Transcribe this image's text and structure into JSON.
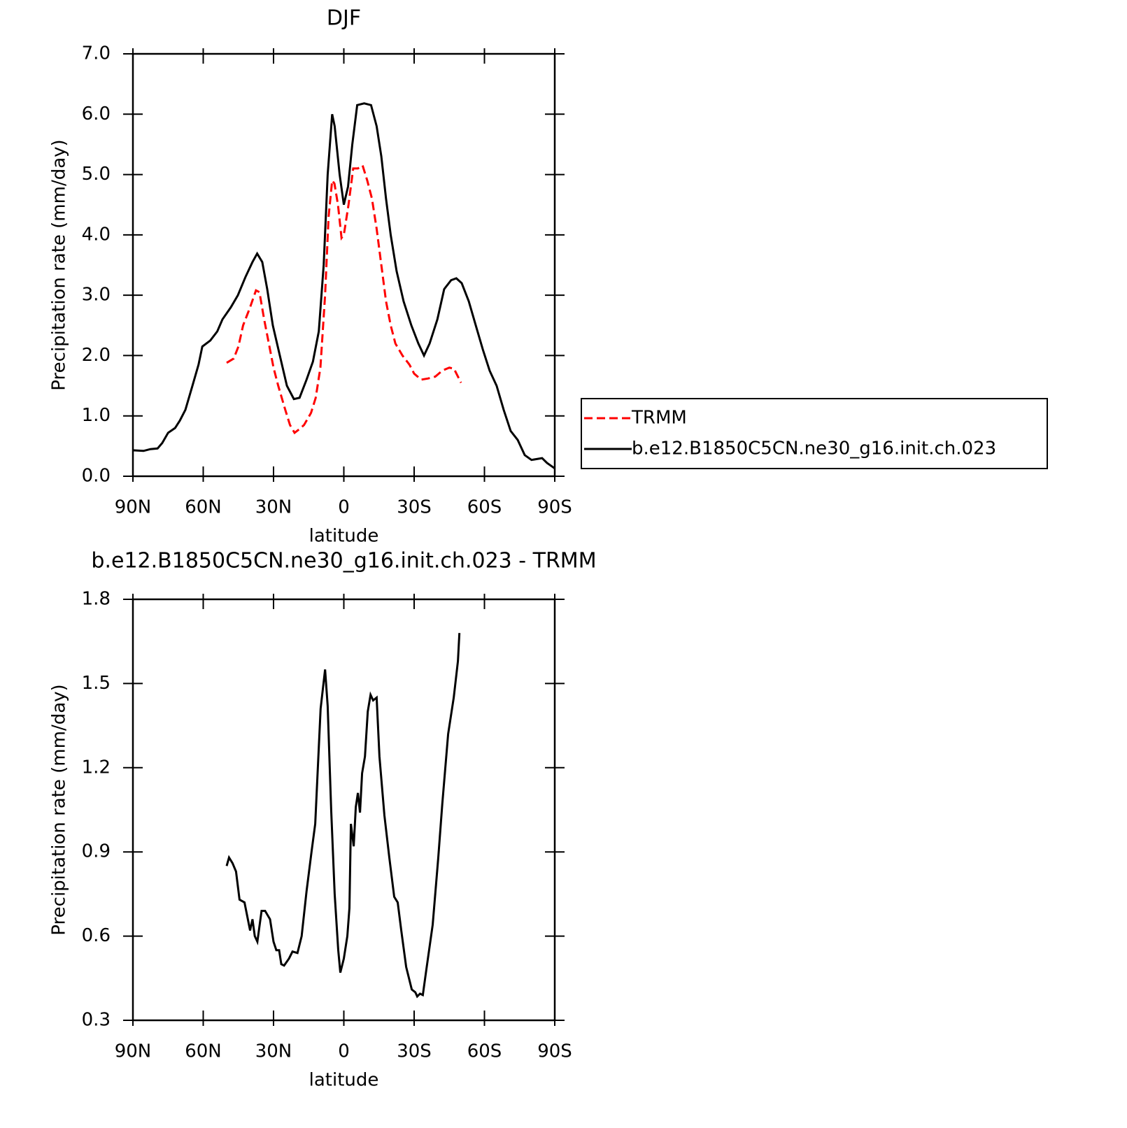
{
  "chart_data": [
    {
      "type": "line",
      "title": "DJF",
      "x_label": "latitude",
      "y_label": "Precipitation rate (mm/day)",
      "xlim": [
        90,
        -90
      ],
      "xticks": [
        {
          "value": 90,
          "label": "90N"
        },
        {
          "value": 60,
          "label": "60N"
        },
        {
          "value": 30,
          "label": "30N"
        },
        0,
        {
          "value": -30,
          "label": "30S"
        },
        {
          "value": -60,
          "label": "60S"
        },
        {
          "value": -90,
          "label": "90S"
        }
      ],
      "ylim": [
        0,
        7
      ],
      "yticks": [
        {
          "value": 0,
          "label": "0.0"
        },
        {
          "value": 1,
          "label": "1.0"
        },
        {
          "value": 2,
          "label": "2.0"
        },
        {
          "value": 3,
          "label": "3.0"
        },
        {
          "value": 4,
          "label": "4.0"
        },
        {
          "value": 5,
          "label": "5.0"
        },
        {
          "value": 6,
          "label": "6.0"
        },
        {
          "value": 7,
          "label": "7.0"
        }
      ],
      "legend_position": "right",
      "series": [
        {
          "name": "TRMM",
          "color": "#ff0000",
          "linestyle": "dashed",
          "x": [
            50,
            47,
            45,
            43,
            40,
            37.5,
            36,
            34,
            32,
            30,
            28,
            25,
            23,
            21,
            19,
            17,
            14,
            12,
            10,
            8,
            6.5,
            5,
            4,
            2.5,
            1,
            0,
            -2,
            -4,
            -6,
            -8,
            -10,
            -12,
            -14,
            -16,
            -18,
            -20,
            -22,
            -25,
            -28,
            -30,
            -33,
            -36,
            -39,
            -42,
            -45,
            -47,
            -50
          ],
          "values": [
            1.88,
            1.95,
            2.15,
            2.5,
            2.8,
            3.08,
            3.05,
            2.6,
            2.2,
            1.8,
            1.5,
            1.1,
            0.85,
            0.72,
            0.78,
            0.85,
            1.05,
            1.3,
            1.8,
            3.0,
            4.3,
            4.9,
            4.85,
            4.5,
            3.95,
            4.0,
            4.5,
            5.1,
            5.1,
            5.15,
            4.9,
            4.6,
            4.1,
            3.5,
            2.9,
            2.5,
            2.2,
            2.0,
            1.85,
            1.7,
            1.6,
            1.62,
            1.65,
            1.75,
            1.8,
            1.78,
            1.55
          ]
        },
        {
          "name": "b.e12.B1850C5CN.ne30_g16.init.ch.023",
          "color": "#000000",
          "linestyle": "solid",
          "x": [
            90,
            85.5,
            82.5,
            79.5,
            77.5,
            75,
            72,
            70,
            67.6,
            64.6,
            62,
            60.4,
            57,
            54,
            51.8,
            48.2,
            45.2,
            42,
            39,
            37,
            34.8,
            32.7,
            30.3,
            27.3,
            24.3,
            21.3,
            18.9,
            15.9,
            13.2,
            10.7,
            8.6,
            6.9,
            5,
            3.9,
            1.8,
            0,
            -1.8,
            -3.6,
            -5.7,
            -8.7,
            -11.6,
            -14,
            -16,
            -18,
            -20,
            -22.5,
            -25.5,
            -28.8,
            -31.8,
            -34.2,
            -36.6,
            -39.9,
            -42.8,
            -45.8,
            -48,
            -50.3,
            -53.3,
            -56.3,
            -59.3,
            -62.2,
            -65.2,
            -68.2,
            -71.2,
            -74.2,
            -77.2,
            -80.1,
            -84.6,
            -86.7,
            -90
          ],
          "values": [
            0.43,
            0.42,
            0.45,
            0.46,
            0.55,
            0.72,
            0.8,
            0.92,
            1.1,
            1.5,
            1.85,
            2.15,
            2.25,
            2.4,
            2.6,
            2.8,
            3.0,
            3.3,
            3.55,
            3.69,
            3.55,
            3.1,
            2.5,
            2.0,
            1.5,
            1.28,
            1.3,
            1.6,
            1.9,
            2.4,
            3.5,
            5.0,
            6.0,
            5.8,
            5.0,
            4.5,
            4.8,
            5.5,
            6.15,
            6.18,
            6.15,
            5.8,
            5.3,
            4.6,
            4.0,
            3.4,
            2.9,
            2.5,
            2.2,
            2.0,
            2.2,
            2.6,
            3.1,
            3.25,
            3.28,
            3.2,
            2.9,
            2.5,
            2.1,
            1.75,
            1.5,
            1.1,
            0.75,
            0.6,
            0.35,
            0.27,
            0.3,
            0.22,
            0.13
          ]
        }
      ]
    },
    {
      "type": "line",
      "title": "b.e12.B1850C5CN.ne30_g16.init.ch.023 - TRMM",
      "x_label": "latitude",
      "y_label": "Precipitation rate (mm/day)",
      "xlim": [
        90,
        -90
      ],
      "xticks": [
        {
          "value": 90,
          "label": "90N"
        },
        {
          "value": 60,
          "label": "60N"
        },
        {
          "value": 30,
          "label": "30N"
        },
        0,
        {
          "value": -30,
          "label": "30S"
        },
        {
          "value": -60,
          "label": "60S"
        },
        {
          "value": -90,
          "label": "90S"
        }
      ],
      "ylim": [
        0.3,
        1.8
      ],
      "yticks": [
        0.3,
        0.6,
        0.9,
        1.2,
        1.5,
        1.8
      ],
      "series": [
        {
          "color": "#000000",
          "linestyle": "solid",
          "x": [
            50,
            49,
            47.5,
            46,
            44.5,
            42.4,
            40,
            39,
            38,
            36.9,
            35.1,
            33.6,
            31.5,
            30,
            28.8,
            27.6,
            26.7,
            25.5,
            23.4,
            21.9,
            19.8,
            18,
            15.9,
            13.8,
            12.2,
            9.9,
            8,
            6.9,
            5.4,
            3.9,
            2.4,
            1.5,
            0,
            -1.5,
            -2.4,
            -3,
            -4.2,
            -5.1,
            -6,
            -6.9,
            -7.8,
            -9,
            -10.2,
            -11.4,
            -12.5,
            -14,
            -15.2,
            -17.3,
            -19.4,
            -21.5,
            -23,
            -24.5,
            -26.6,
            -29,
            -30.5,
            -31.3,
            -32.5,
            -33.7,
            -35.2,
            -37.9,
            -40.3,
            -42,
            -44.5,
            -46.9,
            -48.7,
            -49.3
          ],
          "values": [
            0.85,
            0.88,
            0.86,
            0.83,
            0.73,
            0.72,
            0.62,
            0.66,
            0.6,
            0.58,
            0.69,
            0.69,
            0.66,
            0.58,
            0.55,
            0.55,
            0.5,
            0.495,
            0.52,
            0.545,
            0.54,
            0.6,
            0.76,
            0.9,
            1.0,
            1.41,
            1.55,
            1.42,
            1.05,
            0.75,
            0.55,
            0.47,
            0.52,
            0.6,
            0.7,
            1.0,
            0.92,
            1.06,
            1.11,
            1.04,
            1.18,
            1.24,
            1.4,
            1.46,
            1.44,
            1.45,
            1.24,
            1.03,
            0.88,
            0.74,
            0.72,
            0.62,
            0.49,
            0.41,
            0.4,
            0.385,
            0.395,
            0.39,
            0.48,
            0.64,
            0.88,
            1.07,
            1.32,
            1.45,
            1.58,
            1.68
          ]
        }
      ]
    }
  ]
}
